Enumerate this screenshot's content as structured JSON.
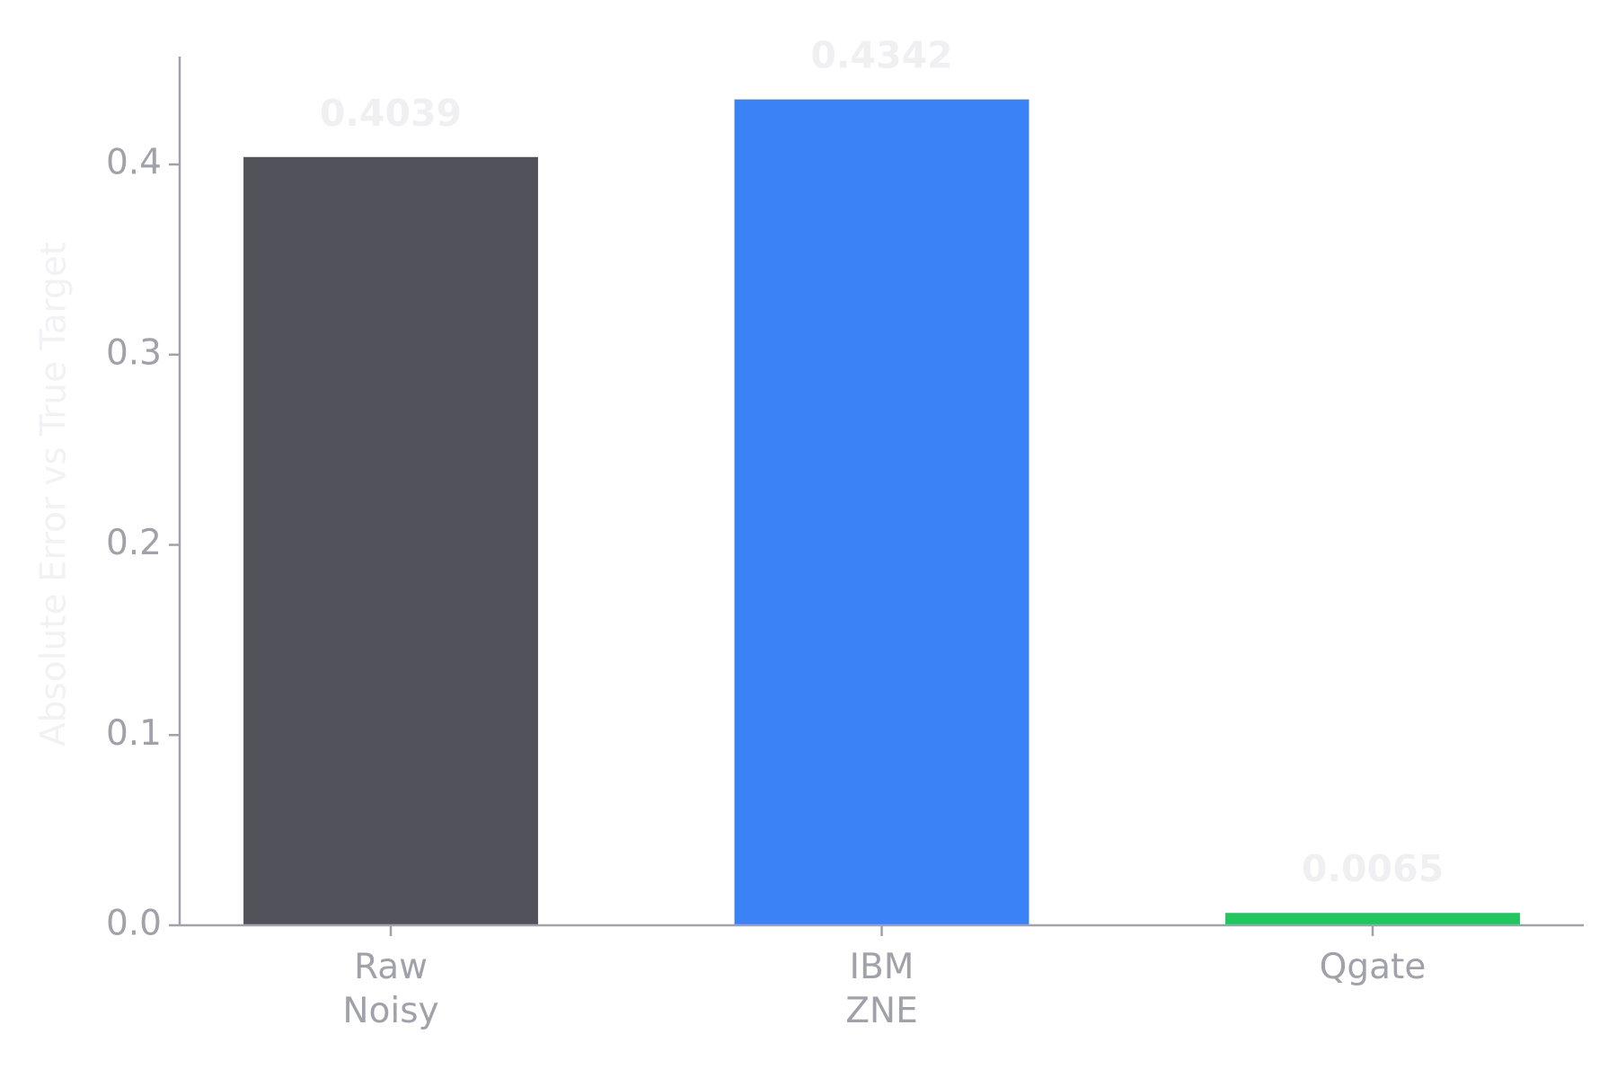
{
  "chart_data": {
    "type": "bar",
    "y_label": "Absolute Error vs True Target",
    "categories": [
      "Raw\nNoisy",
      "IBM\nZNE",
      "Qgate"
    ],
    "values": [
      0.4039,
      0.4342,
      0.0065
    ],
    "colors": [
      "#52525b",
      "#3b82f6",
      "#22c55e"
    ],
    "ylim": [
      0,
      0.4567
    ],
    "yticks": [
      {
        "value": 0,
        "label": "0.0"
      },
      0.1,
      0.2,
      0.3,
      0.4
    ],
    "grid": false
  }
}
